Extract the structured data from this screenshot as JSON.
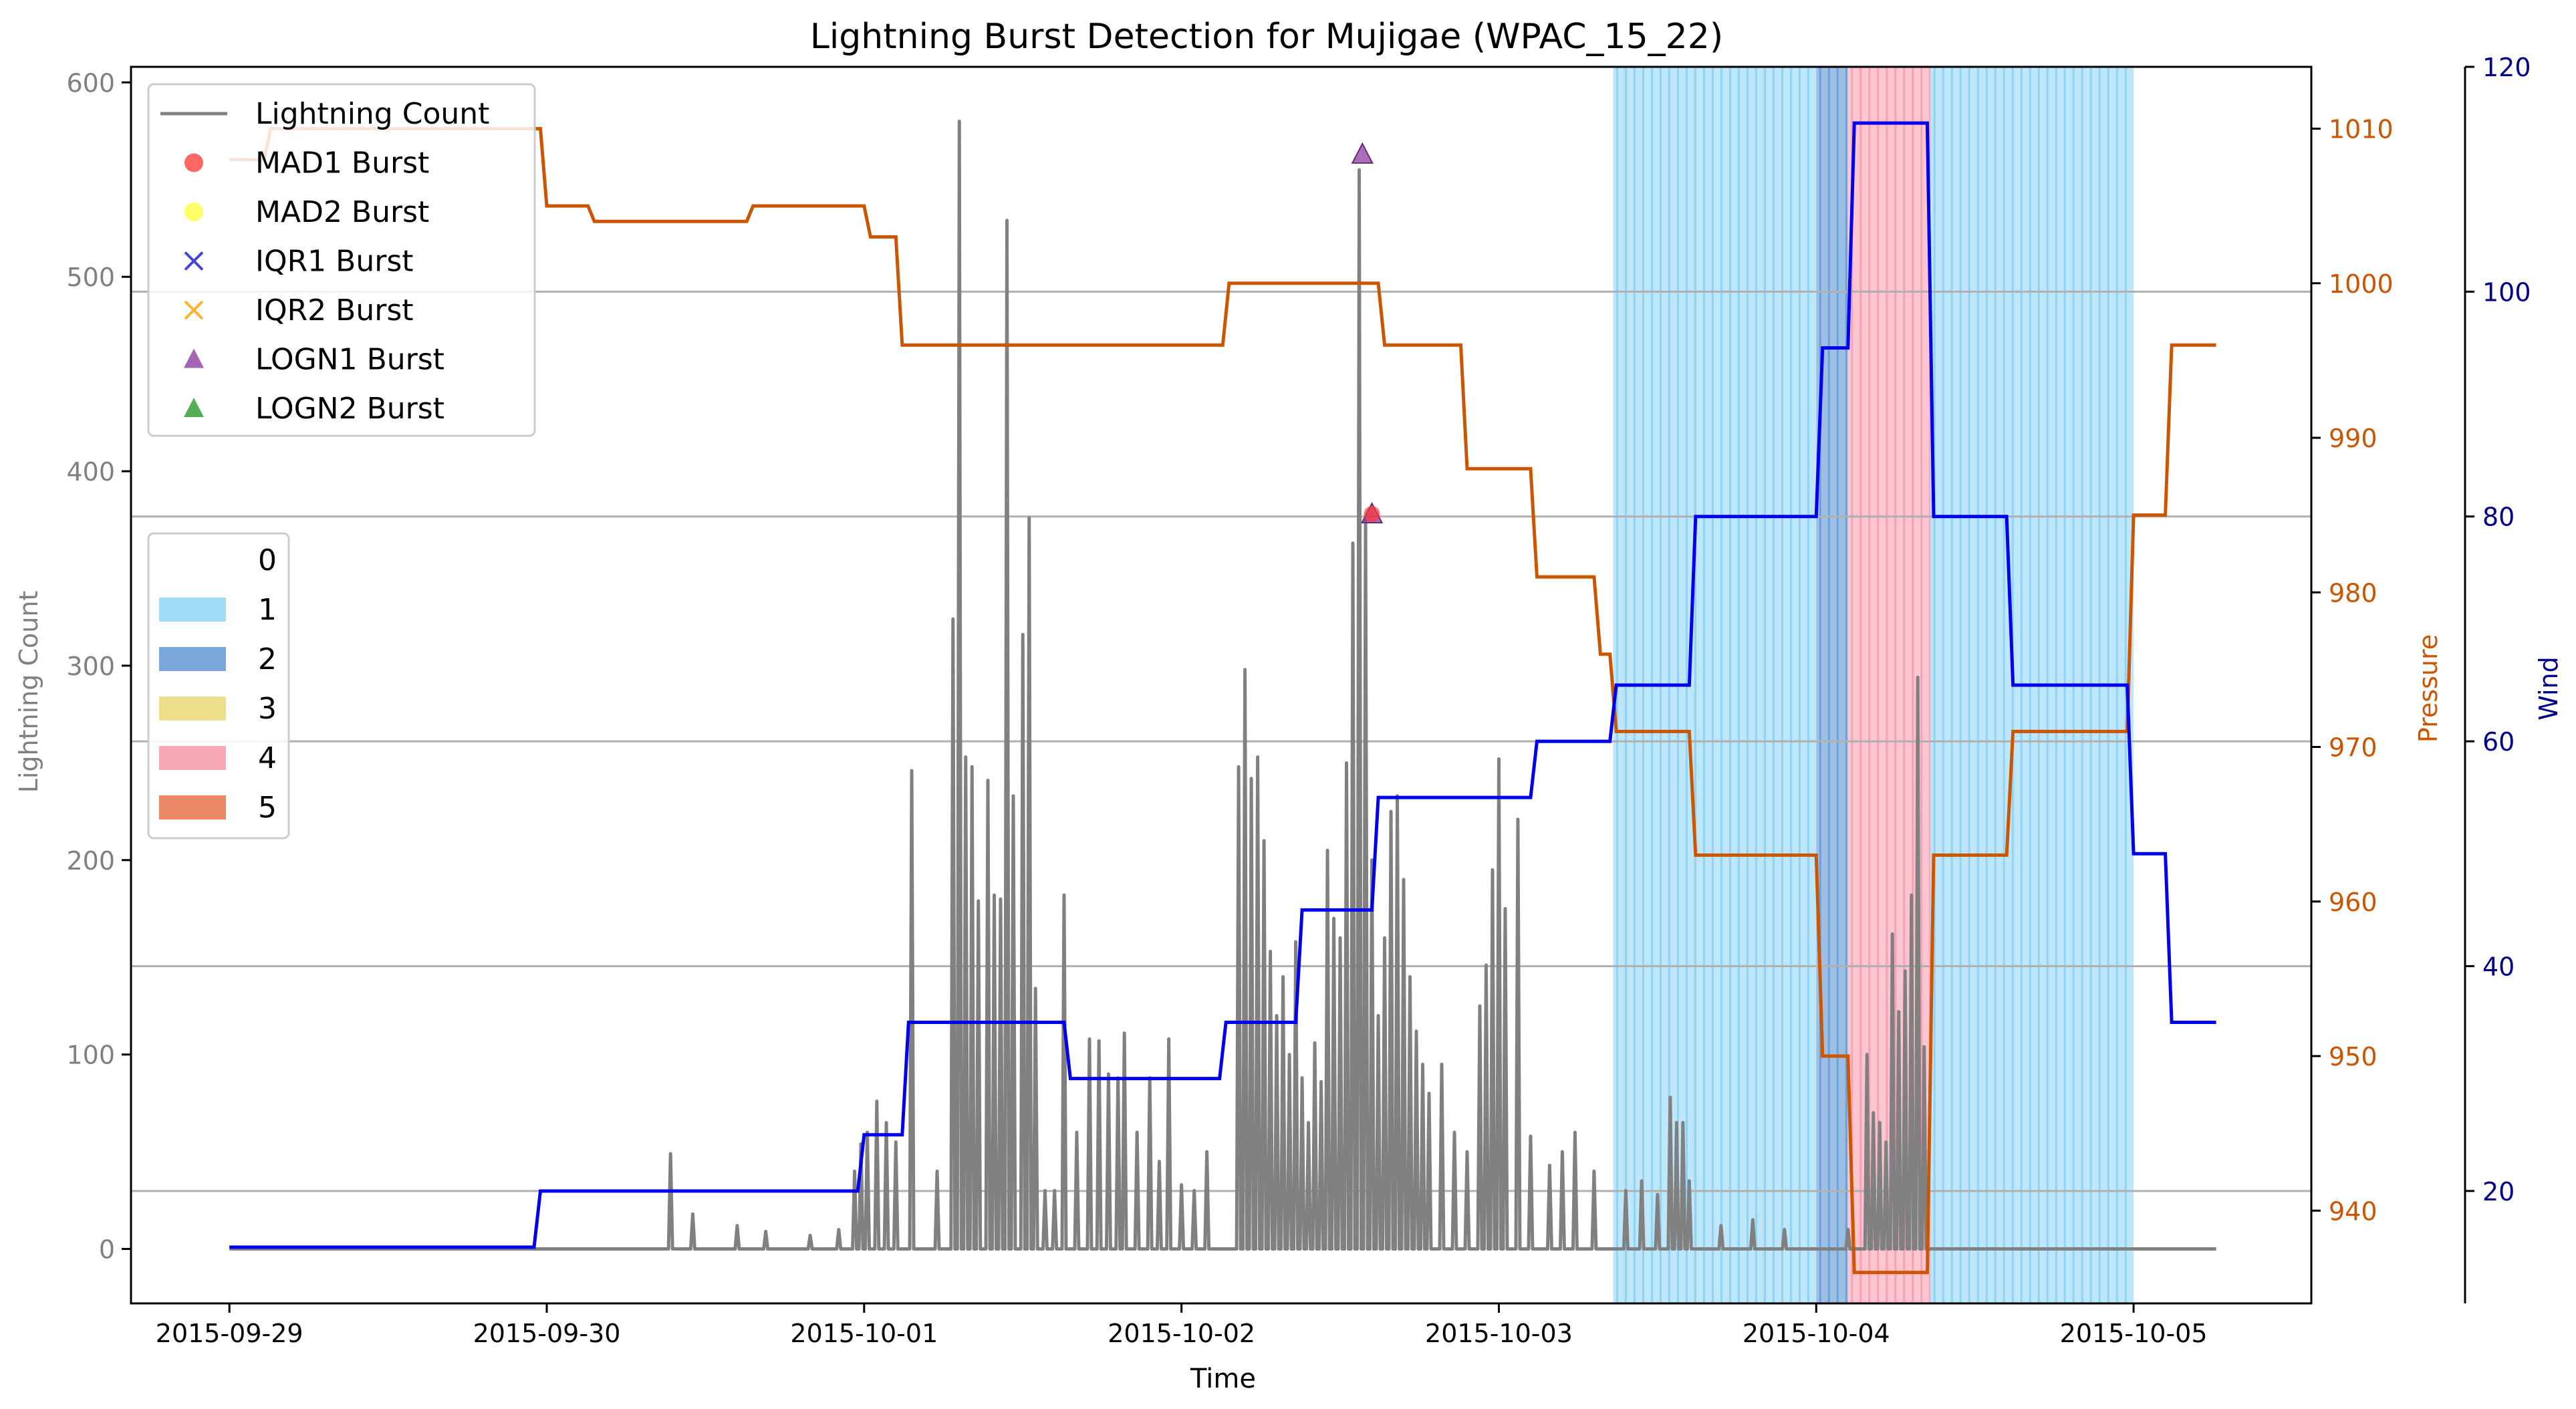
{
  "chart_data": {
    "type": "line",
    "title": "Lightning Burst Detection for Mujigae (WPAC_15_22)",
    "xlabel": "Time",
    "ylabel_left": "Lightning Count",
    "ylabel_pressure": "Pressure",
    "ylabel_wind": "Wind",
    "x_ticks": [
      "2015-09-29",
      "2015-09-30",
      "2015-10-01",
      "2015-10-02",
      "2015-10-03",
      "2015-10-04",
      "2015-10-05"
    ],
    "xlim_days": [
      -0.31,
      6.56
    ],
    "ylim_left": [
      -28,
      608
    ],
    "y_ticks_left": [
      "0",
      "100",
      "200",
      "300",
      "400",
      "500",
      "600"
    ],
    "ylim_pressure": [
      934,
      1014
    ],
    "y_ticks_pressure": [
      "940",
      "950",
      "960",
      "970",
      "980",
      "990",
      "1000",
      "1010"
    ],
    "ylim_wind": [
      10,
      120
    ],
    "y_ticks_wind": [
      "20",
      "40",
      "60",
      "80",
      "100",
      "120"
    ],
    "grid": "horizontal lines at wind axis ticks",
    "colors": {
      "lightning": "#808080",
      "pressure": "#cc5500",
      "wind": "#0000ee",
      "cat1": "#87ceeb",
      "cat2": "#4f86c6",
      "cat3": "#e8d67a",
      "cat4": "#ffb6c1",
      "cat5": "#e9744d",
      "grid": "#b0b0b0",
      "pressure_axis": "#cc5500",
      "wind_axis": "#00008b"
    },
    "legend_series": [
      {
        "label": "Lightning Count",
        "marker": "line",
        "color": "#808080"
      },
      {
        "label": "MAD1 Burst",
        "marker": "circle",
        "color": "#ff3333"
      },
      {
        "label": "MAD2 Burst",
        "marker": "circle",
        "color": "#ffff33"
      },
      {
        "label": "IQR1 Burst",
        "marker": "x",
        "color": "#4444dd"
      },
      {
        "label": "IQR2 Burst",
        "marker": "x",
        "color": "#ffb030"
      },
      {
        "label": "LOGN1 Burst",
        "marker": "triangle",
        "color": "#8e3ea0"
      },
      {
        "label": "LOGN2 Burst",
        "marker": "triangle",
        "color": "#2a9a2a"
      }
    ],
    "legend_categories": [
      {
        "label": "0",
        "color": "#ffffff"
      },
      {
        "label": "1",
        "color": "#9fdcf7"
      },
      {
        "label": "2",
        "color": "#7aa8dc"
      },
      {
        "label": "3",
        "color": "#eedd8a"
      },
      {
        "label": "4",
        "color": "#f9a8b8"
      },
      {
        "label": "5",
        "color": "#ec8866"
      }
    ],
    "category_spans": [
      {
        "category": 1,
        "start": 4.36,
        "end": 5.0
      },
      {
        "category": 2,
        "start": 5.0,
        "end": 5.1
      },
      {
        "category": 4,
        "start": 5.1,
        "end": 5.36
      },
      {
        "category": 1,
        "start": 5.36,
        "end": 6.0
      }
    ],
    "pressure": {
      "x": [
        0,
        0.11,
        0.13,
        0.98,
        1.0,
        1.13,
        1.15,
        1.63,
        1.65,
        2.0,
        2.02,
        2.1,
        2.12,
        3.13,
        3.15,
        3.62,
        3.64,
        3.88,
        3.9,
        4.1,
        4.12,
        4.3,
        4.32,
        4.35,
        4.37,
        4.6,
        4.62,
        5.0,
        5.02,
        5.1,
        5.12,
        5.35,
        5.37,
        5.6,
        5.62,
        5.98,
        6.0,
        6.1,
        6.12,
        6.26
      ],
      "y": [
        1008,
        1008,
        1010,
        1010,
        1005,
        1005,
        1004,
        1004,
        1005,
        1005,
        1003,
        1003,
        996,
        996,
        1000,
        1000,
        996,
        996,
        988,
        988,
        981,
        981,
        976,
        976,
        971,
        971,
        963,
        963,
        950,
        950,
        936,
        936,
        963,
        963,
        971,
        971,
        985,
        985,
        996,
        996
      ]
    },
    "wind": {
      "x": [
        0,
        0.96,
        0.98,
        1.98,
        2.0,
        2.12,
        2.14,
        2.63,
        2.65,
        3.12,
        3.14,
        3.36,
        3.38,
        3.6,
        3.62,
        4.1,
        4.12,
        4.35,
        4.37,
        4.6,
        4.62,
        5.0,
        5.02,
        5.1,
        5.12,
        5.35,
        5.37,
        5.6,
        5.62,
        5.98,
        6.0,
        6.1,
        6.12,
        6.26
      ],
      "y": [
        15,
        15,
        20,
        20,
        25,
        25,
        35,
        35,
        30,
        30,
        35,
        35,
        45,
        45,
        55,
        55,
        60,
        60,
        65,
        65,
        80,
        80,
        95,
        95,
        115,
        115,
        80,
        80,
        65,
        65,
        50,
        50,
        35,
        35
      ]
    },
    "lightning_spikes": [
      {
        "x": 1.39,
        "y": 49
      },
      {
        "x": 1.46,
        "y": 18
      },
      {
        "x": 1.6,
        "y": 12
      },
      {
        "x": 1.69,
        "y": 9
      },
      {
        "x": 1.83,
        "y": 7
      },
      {
        "x": 1.92,
        "y": 10
      },
      {
        "x": 1.97,
        "y": 40
      },
      {
        "x": 1.99,
        "y": 54
      },
      {
        "x": 2.01,
        "y": 60
      },
      {
        "x": 2.04,
        "y": 76
      },
      {
        "x": 2.07,
        "y": 65
      },
      {
        "x": 2.1,
        "y": 55
      },
      {
        "x": 2.15,
        "y": 246
      },
      {
        "x": 2.23,
        "y": 40
      },
      {
        "x": 2.28,
        "y": 324
      },
      {
        "x": 2.3,
        "y": 580
      },
      {
        "x": 2.32,
        "y": 253
      },
      {
        "x": 2.34,
        "y": 248
      },
      {
        "x": 2.36,
        "y": 179
      },
      {
        "x": 2.39,
        "y": 241
      },
      {
        "x": 2.41,
        "y": 182
      },
      {
        "x": 2.43,
        "y": 180
      },
      {
        "x": 2.45,
        "y": 529
      },
      {
        "x": 2.47,
        "y": 233
      },
      {
        "x": 2.5,
        "y": 316
      },
      {
        "x": 2.52,
        "y": 376
      },
      {
        "x": 2.54,
        "y": 134
      },
      {
        "x": 2.57,
        "y": 30
      },
      {
        "x": 2.6,
        "y": 30
      },
      {
        "x": 2.63,
        "y": 182
      },
      {
        "x": 2.67,
        "y": 60
      },
      {
        "x": 2.71,
        "y": 108
      },
      {
        "x": 2.74,
        "y": 107
      },
      {
        "x": 2.77,
        "y": 90
      },
      {
        "x": 2.8,
        "y": 88
      },
      {
        "x": 2.82,
        "y": 111
      },
      {
        "x": 2.86,
        "y": 60
      },
      {
        "x": 2.9,
        "y": 88
      },
      {
        "x": 2.93,
        "y": 45
      },
      {
        "x": 2.96,
        "y": 108
      },
      {
        "x": 3.0,
        "y": 33
      },
      {
        "x": 3.04,
        "y": 30
      },
      {
        "x": 3.08,
        "y": 50
      },
      {
        "x": 3.18,
        "y": 248
      },
      {
        "x": 3.2,
        "y": 298
      },
      {
        "x": 3.22,
        "y": 242
      },
      {
        "x": 3.24,
        "y": 253
      },
      {
        "x": 3.26,
        "y": 210
      },
      {
        "x": 3.28,
        "y": 153
      },
      {
        "x": 3.3,
        "y": 120
      },
      {
        "x": 3.32,
        "y": 140
      },
      {
        "x": 3.34,
        "y": 100
      },
      {
        "x": 3.36,
        "y": 158
      },
      {
        "x": 3.38,
        "y": 88
      },
      {
        "x": 3.4,
        "y": 65
      },
      {
        "x": 3.42,
        "y": 106
      },
      {
        "x": 3.44,
        "y": 86
      },
      {
        "x": 3.46,
        "y": 205
      },
      {
        "x": 3.48,
        "y": 170
      },
      {
        "x": 3.5,
        "y": 160
      },
      {
        "x": 3.52,
        "y": 250
      },
      {
        "x": 3.54,
        "y": 363
      },
      {
        "x": 3.56,
        "y": 555
      },
      {
        "x": 3.58,
        "y": 375
      },
      {
        "x": 3.6,
        "y": 200
      },
      {
        "x": 3.62,
        "y": 120
      },
      {
        "x": 3.64,
        "y": 160
      },
      {
        "x": 3.66,
        "y": 225
      },
      {
        "x": 3.68,
        "y": 233
      },
      {
        "x": 3.7,
        "y": 190
      },
      {
        "x": 3.72,
        "y": 140
      },
      {
        "x": 3.74,
        "y": 112
      },
      {
        "x": 3.76,
        "y": 95
      },
      {
        "x": 3.78,
        "y": 80
      },
      {
        "x": 3.82,
        "y": 95
      },
      {
        "x": 3.86,
        "y": 60
      },
      {
        "x": 3.9,
        "y": 50
      },
      {
        "x": 3.94,
        "y": 125
      },
      {
        "x": 3.96,
        "y": 146
      },
      {
        "x": 3.98,
        "y": 195
      },
      {
        "x": 4.0,
        "y": 252
      },
      {
        "x": 4.02,
        "y": 175
      },
      {
        "x": 4.06,
        "y": 221
      },
      {
        "x": 4.1,
        "y": 58
      },
      {
        "x": 4.16,
        "y": 43
      },
      {
        "x": 4.2,
        "y": 50
      },
      {
        "x": 4.24,
        "y": 60
      },
      {
        "x": 4.3,
        "y": 40
      },
      {
        "x": 4.4,
        "y": 30
      },
      {
        "x": 4.45,
        "y": 35
      },
      {
        "x": 4.5,
        "y": 28
      },
      {
        "x": 4.54,
        "y": 78
      },
      {
        "x": 4.56,
        "y": 65
      },
      {
        "x": 4.58,
        "y": 65
      },
      {
        "x": 4.6,
        "y": 35
      },
      {
        "x": 4.7,
        "y": 12
      },
      {
        "x": 4.8,
        "y": 15
      },
      {
        "x": 4.9,
        "y": 10
      },
      {
        "x": 5.1,
        "y": 10
      },
      {
        "x": 5.16,
        "y": 100
      },
      {
        "x": 5.18,
        "y": 70
      },
      {
        "x": 5.2,
        "y": 65
      },
      {
        "x": 5.22,
        "y": 55
      },
      {
        "x": 5.24,
        "y": 162
      },
      {
        "x": 5.26,
        "y": 122
      },
      {
        "x": 5.28,
        "y": 143
      },
      {
        "x": 5.3,
        "y": 182
      },
      {
        "x": 5.32,
        "y": 294
      },
      {
        "x": 5.34,
        "y": 104
      }
    ],
    "bursts": [
      {
        "type": "LOGN1",
        "x": 3.57,
        "y": 563
      },
      {
        "type": "LOGN1",
        "x": 3.6,
        "y": 378
      },
      {
        "type": "MAD1",
        "x": 3.6,
        "y": 378
      }
    ]
  }
}
